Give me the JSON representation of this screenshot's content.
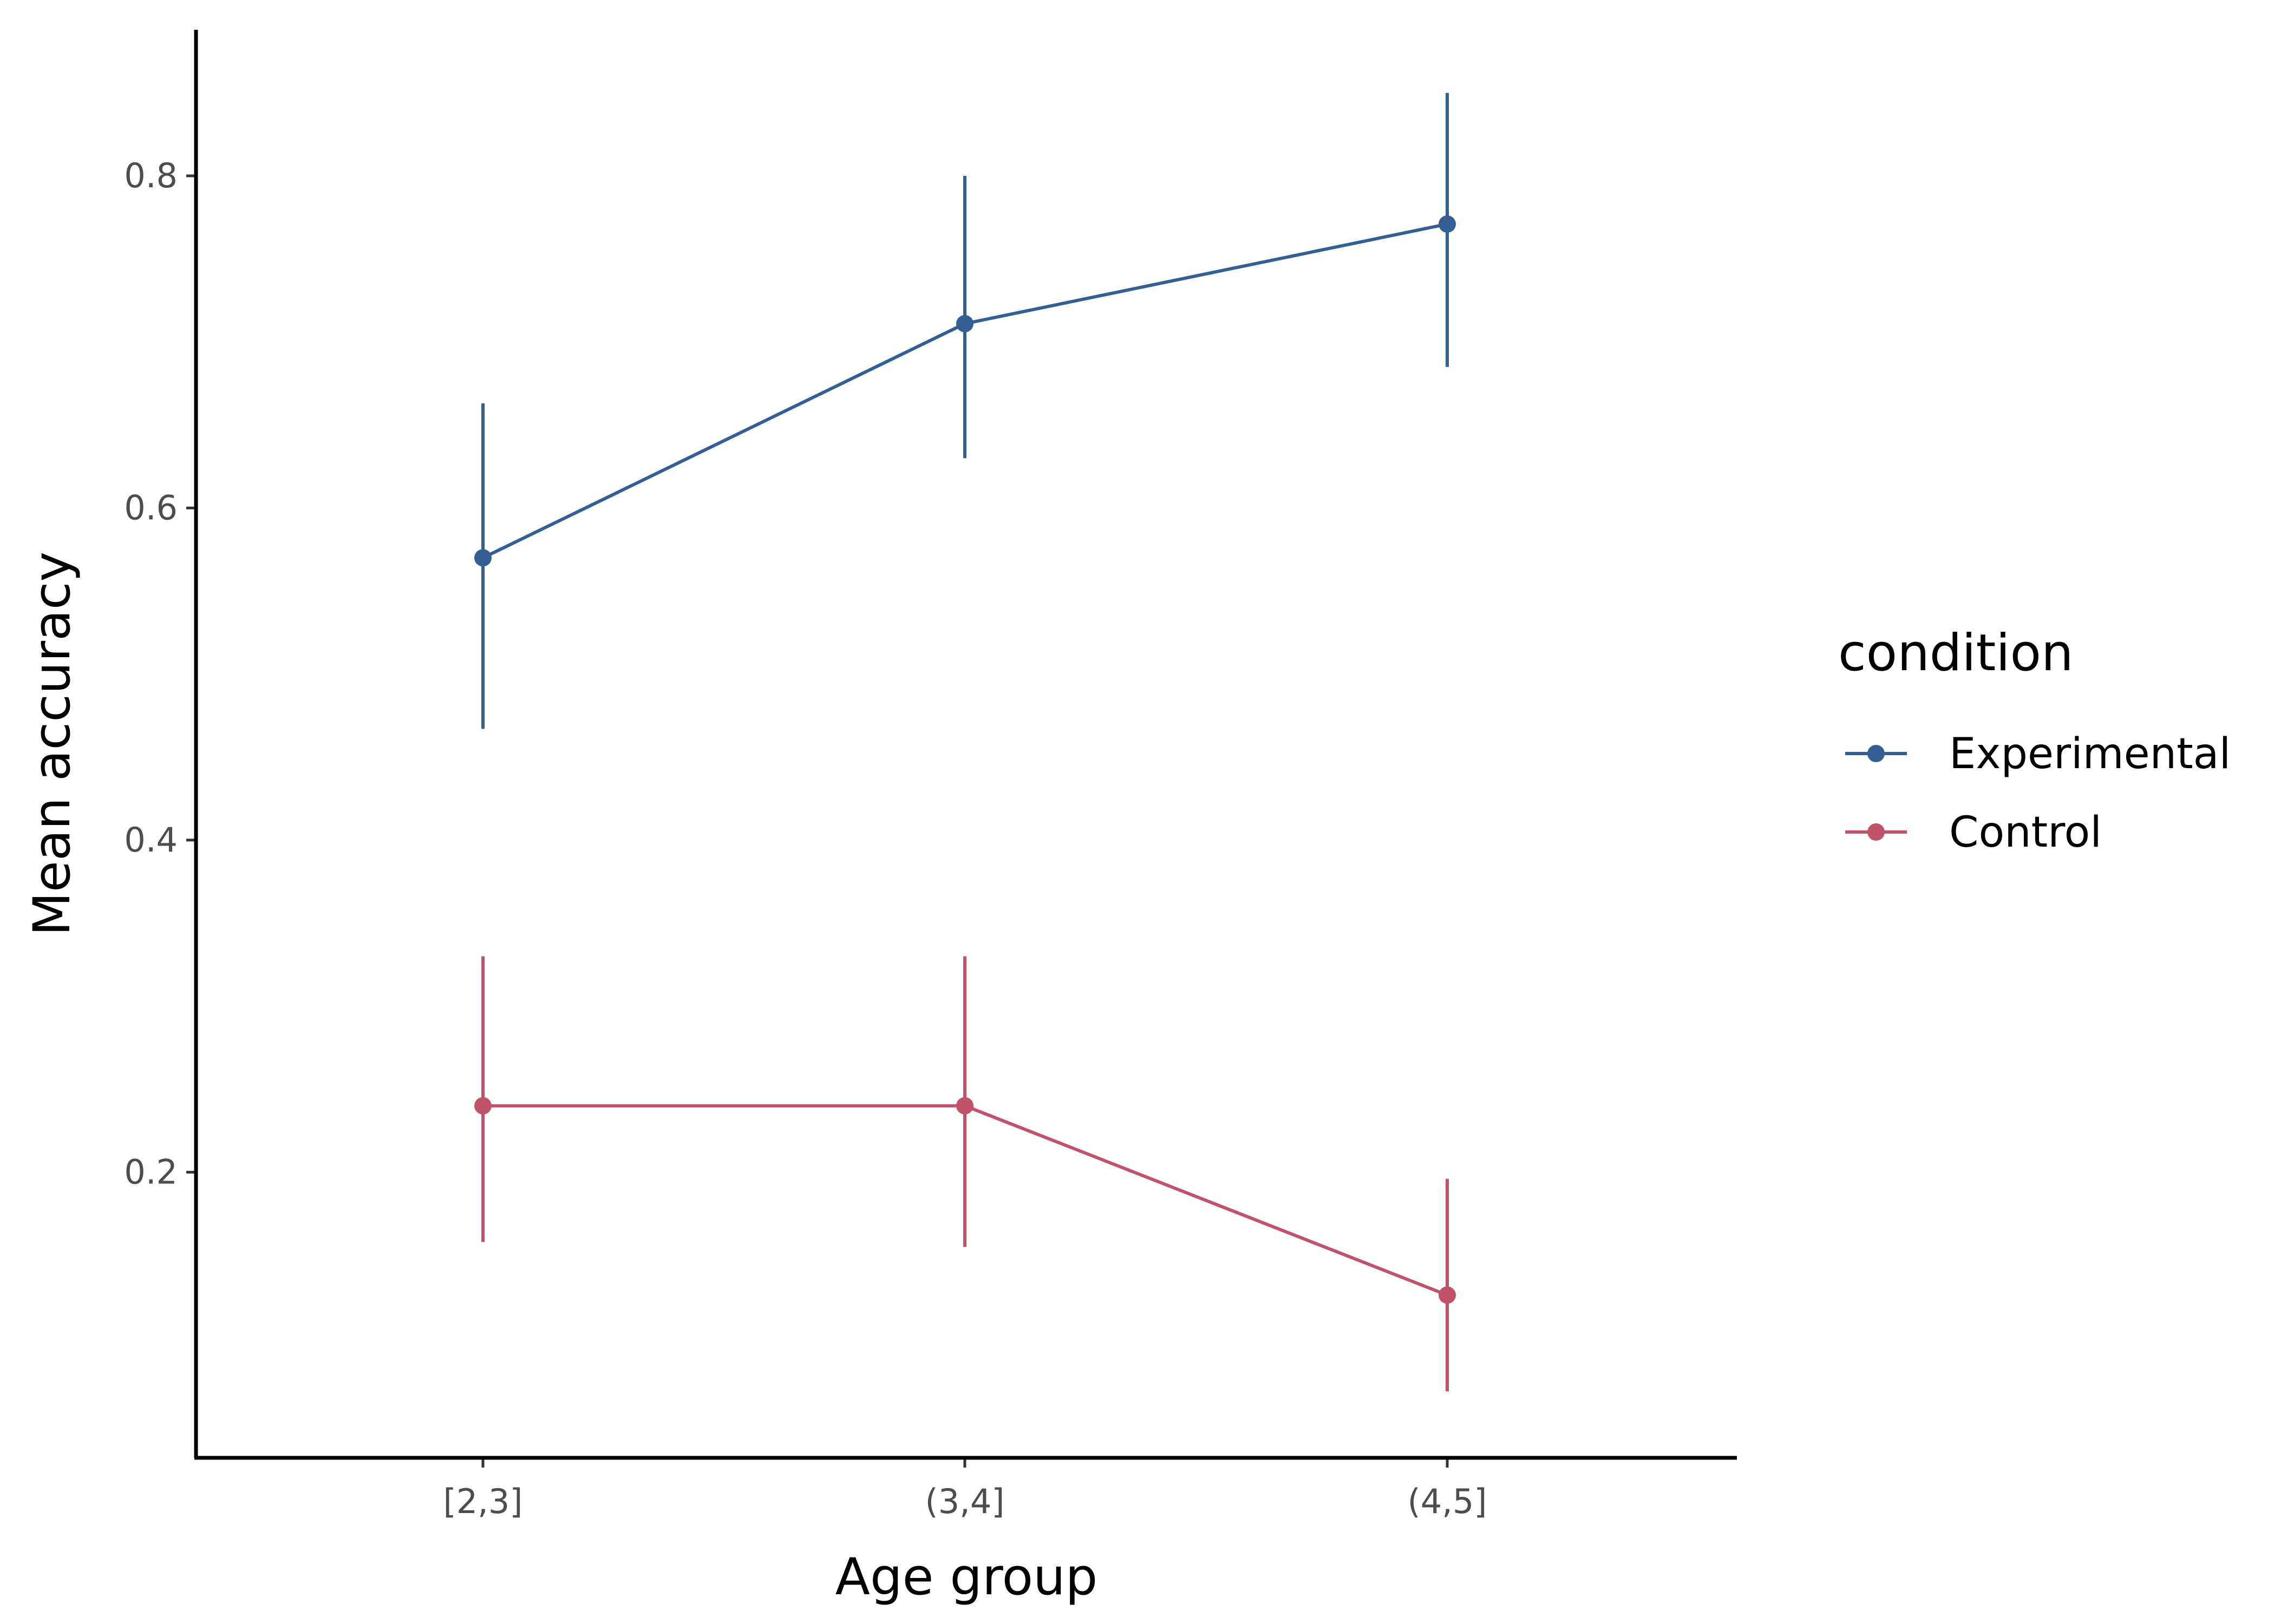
{
  "chart_data": {
    "type": "line",
    "categories": [
      "[2,3]",
      "(3,4]",
      "(4,5]"
    ],
    "y_ticks": [
      0.2,
      0.4,
      0.6,
      0.8
    ],
    "y_tick_labels": [
      "0.2",
      "0.4",
      "0.6",
      "0.8"
    ],
    "ylim": [
      0.028,
      0.888
    ],
    "xlabel": "Age group",
    "ylabel": "Mean accuracy",
    "legend": {
      "title": "condition",
      "position": "right"
    },
    "series": [
      {
        "name": "Experimental",
        "color": "#345f95",
        "values": [
          0.57,
          0.711,
          0.771
        ],
        "lower": [
          0.467,
          0.63,
          0.685
        ],
        "upper": [
          0.663,
          0.8,
          0.85
        ]
      },
      {
        "name": "Control",
        "color": "#c0526a",
        "values": [
          0.24,
          0.24,
          0.126
        ],
        "lower": [
          0.158,
          0.155,
          0.068
        ],
        "upper": [
          0.33,
          0.33,
          0.196
        ]
      }
    ],
    "grid": false
  }
}
